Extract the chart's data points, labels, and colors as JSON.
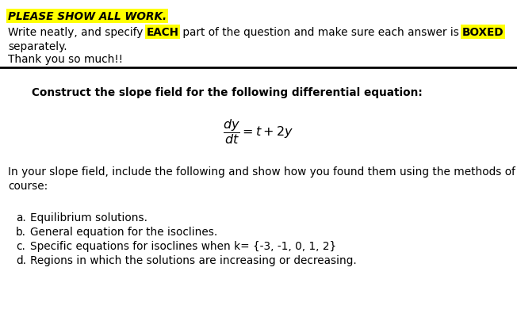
{
  "bg": "#ffffff",
  "yellow": "#ffff00",
  "black": "#000000",
  "fig_w": 6.52,
  "fig_h": 4.06,
  "dpi": 100,
  "fs_main": 9.8,
  "fs_eq": 11.5,
  "line1": "PLEASE SHOW ALL WORK.",
  "line2a": "Write neatly, and specify ",
  "line2b": "EACH",
  "line2c": " part of the question and make sure each answer is ",
  "line2d": "BOXED",
  "line3": "separately.",
  "line4": "Thank you so much!!",
  "intro": "Construct the slope field for the following differential equation:",
  "para": "In your slope field, include the following and show how you found them using the methods of the\ncourse:",
  "items": [
    [
      "a.",
      "   Equilibrium solutions."
    ],
    [
      "b.",
      "   General equation for the isoclines."
    ],
    [
      "c.",
      "   Specific equations for isoclines when k= {-3, -1, 0, 1, 2}"
    ],
    [
      "d.",
      "   Regions in which the solutions are increasing or decreasing."
    ]
  ]
}
